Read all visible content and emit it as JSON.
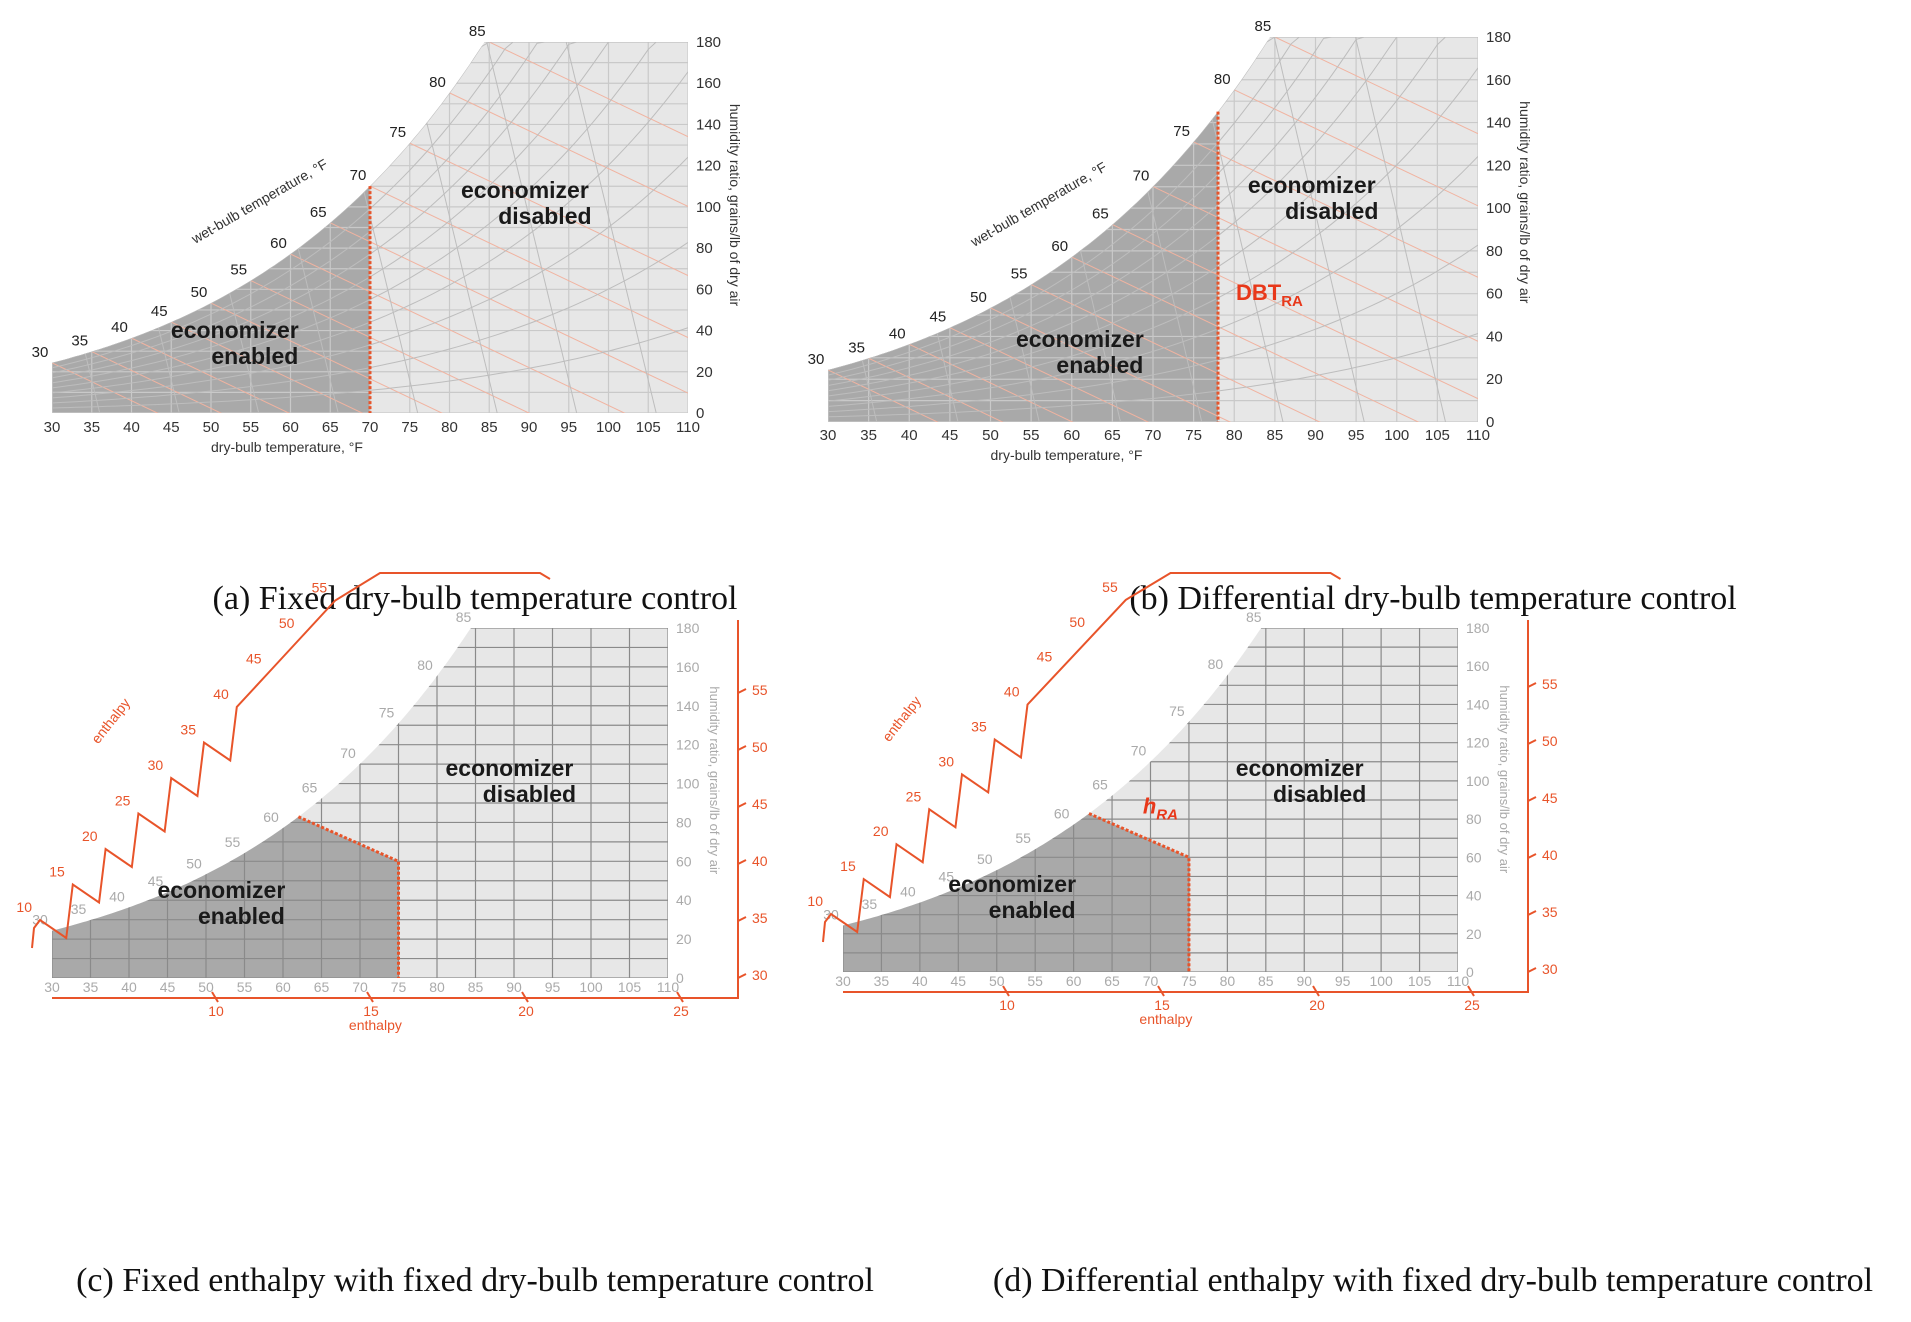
{
  "colors": {
    "enabled_fill": "#a9a9a9",
    "disabled_fill": "#e7e7e7",
    "grid_dark": "#8a8a8a",
    "grid_light": "#c9c9c9",
    "red": "#e8542a",
    "highlight": "#e8381a"
  },
  "common": {
    "dry_bulb_label": "dry-bulb temperature, °F",
    "wet_bulb_label": "wet-bulb temperature, °F",
    "humidity_label": "humidity ratio, grains/lb of dry air",
    "enabled_line1": "economizer",
    "enabled_line2": "enabled",
    "disabled_line1": "economizer",
    "disabled_line2": "disabled",
    "enthalpy_label": "enthalpy",
    "x_ticks": [
      "30",
      "35",
      "40",
      "45",
      "50",
      "55",
      "60",
      "65",
      "70",
      "75",
      "80",
      "85",
      "90",
      "95",
      "100",
      "105",
      "110"
    ],
    "y_ticks": [
      "0",
      "20",
      "40",
      "60",
      "80",
      "100",
      "120",
      "140",
      "160",
      "180"
    ],
    "wb_ticks": [
      "30",
      "35",
      "40",
      "45",
      "50",
      "55",
      "60",
      "65",
      "70",
      "75",
      "80",
      "85"
    ],
    "enthalpy_bottom_ticks": [
      "10",
      "15",
      "20",
      "25"
    ],
    "enthalpy_right_ticks": [
      "30",
      "35",
      "40",
      "45",
      "50",
      "55"
    ],
    "enthalpy_diag_ticks": [
      "10",
      "15",
      "20",
      "25",
      "30",
      "35",
      "40",
      "45",
      "50",
      "55"
    ]
  },
  "panels": [
    {
      "id": "a",
      "caption": "(a) Fixed dry-bulb temperature control",
      "enthalpy": false,
      "boundary_db": 70,
      "highlight_label": "",
      "highlight_sub": ""
    },
    {
      "id": "b",
      "caption": "(b) Differential dry-bulb temperature control",
      "enthalpy": false,
      "boundary_db": 78,
      "highlight_label": "DBT",
      "highlight_sub": "RA"
    },
    {
      "id": "c",
      "caption": "(c) Fixed enthalpy with fixed dry-bulb temperature control",
      "enthalpy": true,
      "boundary_db": 75,
      "highlight_label": "",
      "highlight_sub": ""
    },
    {
      "id": "d",
      "caption": "(d) Differential enthalpy with fixed dry-bulb temperature control",
      "enthalpy": true,
      "boundary_db": 75,
      "highlight_label": "h",
      "highlight_sub": "RA"
    }
  ]
}
